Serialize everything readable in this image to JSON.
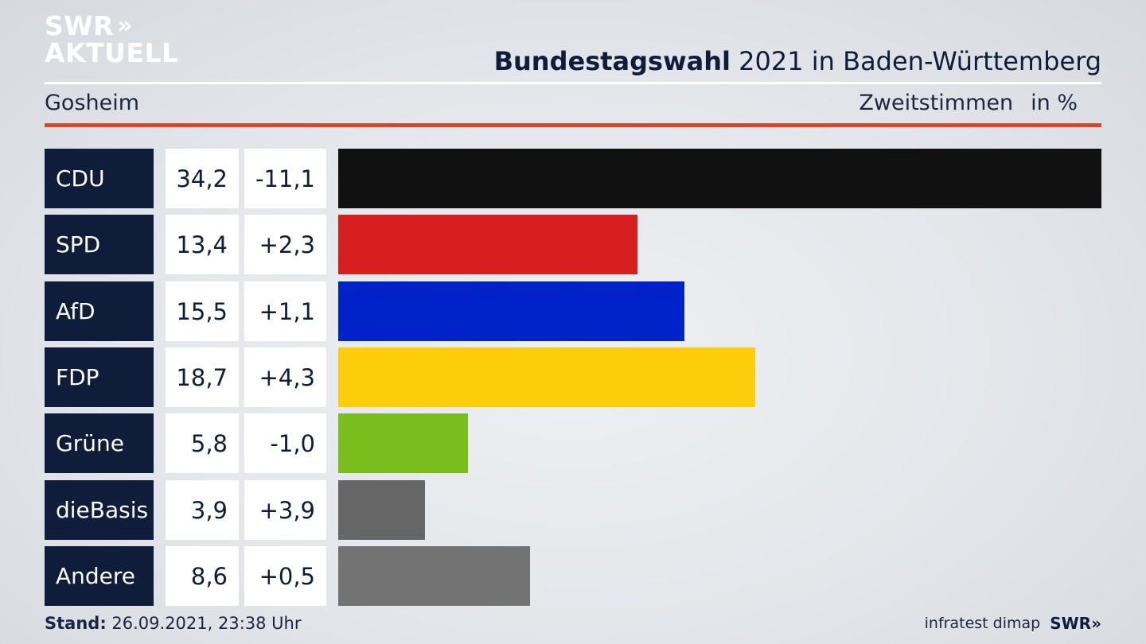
{
  "logo": {
    "line1": "SWR",
    "line2": "AKTUELL",
    "chevrons": "»"
  },
  "header": {
    "title_bold": "Bundestagswahl",
    "title_rest": " 2021 in Baden-Württemberg",
    "place": "Gosheim",
    "measure": "Zweitstimmen",
    "unit": "in %"
  },
  "chart_data": {
    "type": "bar",
    "orientation": "horizontal",
    "categories": [
      "CDU",
      "SPD",
      "AfD",
      "FDP",
      "Grüne",
      "dieBasis",
      "Andere"
    ],
    "values": [
      34.2,
      13.4,
      15.5,
      18.7,
      5.8,
      3.9,
      8.6
    ],
    "value_labels": [
      "34,2",
      "13,4",
      "15,5",
      "18,7",
      "5,8",
      "3,9",
      "8,6"
    ],
    "changes": [
      "-11,1",
      "+2,3",
      "+1,1",
      "+4,3",
      "-1,0",
      "+3,9",
      "+0,5"
    ],
    "colors": [
      "#111111",
      "#d81f1f",
      "#0023c9",
      "#fccd0a",
      "#79be1d",
      "#666666",
      "#737373"
    ],
    "xlim": [
      0,
      34.2
    ]
  },
  "footer": {
    "stand_label": "Stand:",
    "stand_value": " 26.09.2021, 23:38 Uhr",
    "source": "infratest dimap",
    "brand": "SWR»"
  }
}
